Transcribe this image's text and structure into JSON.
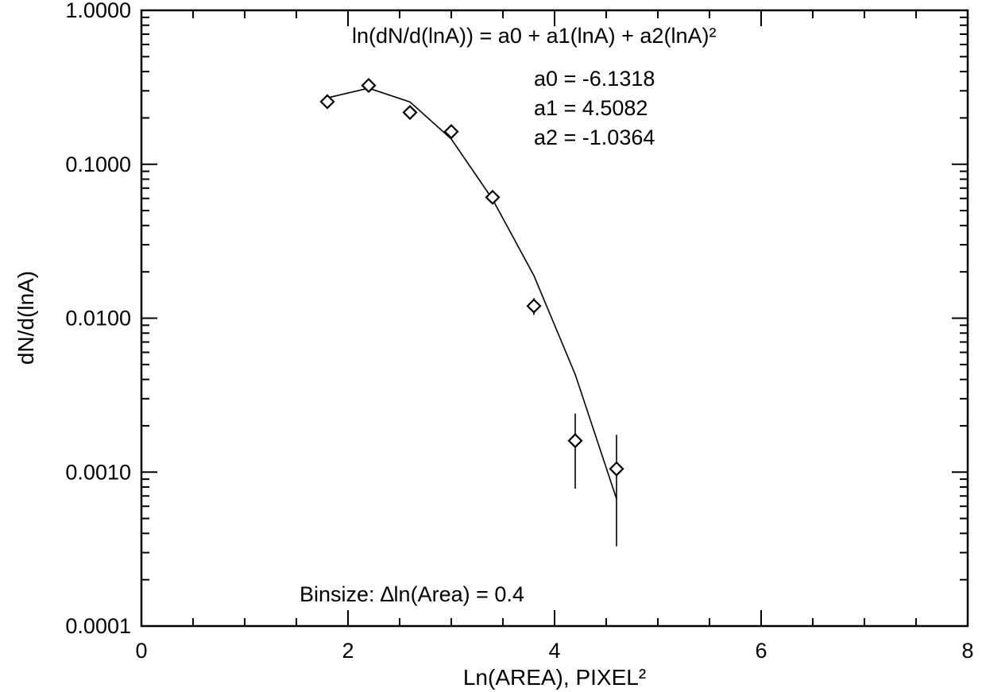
{
  "chart_data": {
    "type": "scatter",
    "xlabel": "Ln(AREA), PIXEL²",
    "ylabel": "dN/d(lnA)",
    "xlim": [
      0,
      8
    ],
    "ylim": [
      0.0001,
      1.0
    ],
    "y_scale": "log",
    "grid": false,
    "x_ticks": [
      0,
      2,
      4,
      6,
      8
    ],
    "x_tick_labels": [
      "0",
      "2",
      "4",
      "6",
      "8"
    ],
    "y_ticks": [
      0.0001,
      0.001,
      0.01,
      0.1,
      1.0
    ],
    "y_tick_labels": [
      "0.0001",
      "0.0010",
      "0.0100",
      "0.1000",
      "1.0000"
    ],
    "points": {
      "marker": "diamond",
      "x": [
        1.8,
        2.2,
        2.6,
        3.0,
        3.4,
        3.8,
        4.2,
        4.6
      ],
      "y": [
        0.255,
        0.325,
        0.217,
        0.163,
        0.061,
        0.012,
        0.0016,
        0.00105
      ],
      "err_low": [
        null,
        null,
        null,
        null,
        null,
        0.0105,
        0.00078,
        0.00033
      ],
      "err_high": [
        null,
        null,
        null,
        null,
        null,
        0.0135,
        0.0024,
        0.00175
      ]
    },
    "fit": {
      "x": [
        1.8,
        2.2,
        2.6,
        3.0,
        3.4,
        3.8,
        4.2,
        4.6
      ],
      "y": [
        0.27,
        0.312,
        0.254,
        0.146,
        0.0592,
        0.0189,
        0.00431,
        0.00067
      ]
    },
    "annotations": {
      "equation": "ln(dN/d(lnA)) = a0 + a1(lnA) + a2(lnA)²",
      "a0": "a0 = -6.1318",
      "a1": "a1 = 4.5082",
      "a2": "a2 = -1.0364",
      "binsize": "Binsize: ∆ln(Area) = 0.4"
    }
  }
}
